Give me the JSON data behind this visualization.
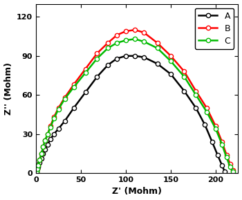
{
  "title": "",
  "xlabel": "Z' (Mohm)",
  "ylabel": "Z'' (Mohm)",
  "xlim": [
    0,
    225
  ],
  "ylim": [
    0,
    130
  ],
  "xticks": [
    0,
    50,
    100,
    150,
    200
  ],
  "yticks": [
    0,
    30,
    60,
    90,
    120
  ],
  "series": [
    {
      "label": "A",
      "color": "#000000",
      "x": [
        0.5,
        1.5,
        2.5,
        4,
        6,
        8,
        10,
        13,
        16,
        20,
        25,
        32,
        42,
        55,
        68,
        80,
        90,
        100,
        110,
        120,
        135,
        150,
        165,
        178,
        188,
        196,
        202,
        207,
        210
      ],
      "y": [
        1,
        3,
        5,
        8,
        11,
        15,
        18,
        22,
        26,
        30,
        34,
        40,
        50,
        62,
        74,
        83,
        88,
        90,
        90,
        89,
        84,
        76,
        63,
        50,
        37,
        24,
        14,
        6,
        1
      ]
    },
    {
      "label": "B",
      "color": "#ff0000",
      "x": [
        0.5,
        1.5,
        2.5,
        4,
        6,
        8,
        10,
        13,
        16,
        20,
        25,
        32,
        42,
        55,
        68,
        80,
        90,
        100,
        110,
        120,
        135,
        150,
        165,
        178,
        190,
        200,
        207,
        212,
        216,
        219
      ],
      "y": [
        1,
        3,
        6,
        10,
        15,
        20,
        25,
        30,
        36,
        43,
        50,
        58,
        68,
        80,
        92,
        100,
        106,
        109,
        110,
        108,
        100,
        90,
        78,
        63,
        50,
        36,
        24,
        14,
        7,
        2
      ]
    },
    {
      "label": "C",
      "color": "#00bb00",
      "x": [
        0.5,
        1.5,
        2.5,
        4,
        6,
        8,
        10,
        13,
        16,
        20,
        25,
        32,
        42,
        55,
        68,
        80,
        90,
        100,
        110,
        120,
        135,
        150,
        165,
        178,
        190,
        200,
        207,
        212,
        216,
        219
      ],
      "y": [
        1,
        3,
        6,
        10,
        15,
        20,
        25,
        30,
        35,
        42,
        49,
        57,
        66,
        77,
        88,
        96,
        100,
        102,
        103,
        101,
        96,
        86,
        74,
        60,
        47,
        34,
        22,
        12,
        5,
        1
      ]
    }
  ],
  "legend_labels": [
    "A",
    "B",
    "C"
  ],
  "legend_colors": [
    "#000000",
    "#ff0000",
    "#00bb00"
  ],
  "marker": "o",
  "markersize": 4.5,
  "linewidth": 1.8,
  "markerfacecolor": "white"
}
